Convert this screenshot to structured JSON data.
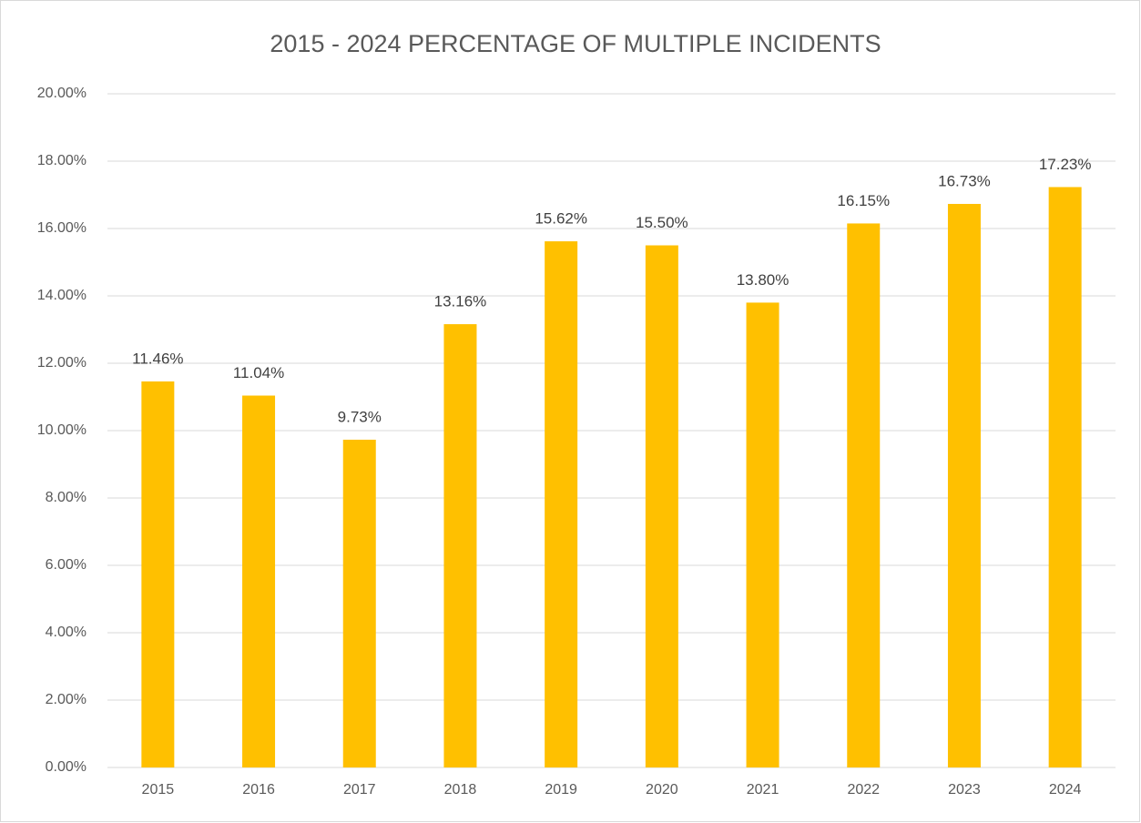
{
  "chart_data": {
    "type": "bar",
    "title": "2015 - 2024 PERCENTAGE OF MULTIPLE INCIDENTS",
    "categories": [
      "2015",
      "2016",
      "2017",
      "2018",
      "2019",
      "2020",
      "2021",
      "2022",
      "2023",
      "2024"
    ],
    "values": [
      11.46,
      11.04,
      9.73,
      13.16,
      15.62,
      15.5,
      13.8,
      16.15,
      16.73,
      17.23
    ],
    "value_labels": [
      "11.46%",
      "11.04%",
      "9.73%",
      "13.16%",
      "15.62%",
      "15.50%",
      "13.80%",
      "16.15%",
      "16.73%",
      "17.23%"
    ],
    "color": "#ffc000",
    "ylim": [
      0,
      20
    ],
    "yticks": [
      {
        "value": 0,
        "label": "0.00%"
      },
      {
        "value": 2,
        "label": "2.00%"
      },
      {
        "value": 4,
        "label": "4.00%"
      },
      {
        "value": 6,
        "label": "6.00%"
      },
      {
        "value": 8,
        "label": "8.00%"
      },
      {
        "value": 10,
        "label": "10.00%"
      },
      {
        "value": 12,
        "label": "12.00%"
      },
      {
        "value": 14,
        "label": "14.00%"
      },
      {
        "value": 16,
        "label": "16.00%"
      },
      {
        "value": 18,
        "label": "18.00%"
      },
      {
        "value": 20,
        "label": "20.00%"
      }
    ],
    "grid": true
  }
}
